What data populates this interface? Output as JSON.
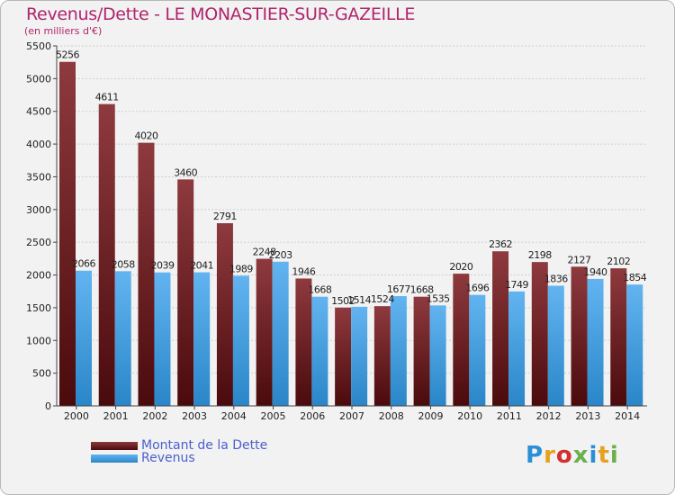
{
  "header": {
    "title": "Revenus/Dette - LE MONASTIER-SUR-GAZEILLE",
    "subtitle": "(en milliers d'€)"
  },
  "legend": {
    "debt_label": "Montant de la Dette",
    "revenue_label": "Revenus"
  },
  "logo": {
    "letters": [
      "P",
      "r",
      "o",
      "x",
      "i",
      "t",
      "i"
    ],
    "colors": [
      "#2b8fd6",
      "#e8a020",
      "#d03030",
      "#6ab04c",
      "#2b8fd6",
      "#e8a020",
      "#6ab04c"
    ]
  },
  "colors": {
    "debt_top": "#8e3a3e",
    "debt_bottom": "#4a0a0c",
    "revenue_top": "#62b4f0",
    "revenue_bottom": "#2a86c8"
  },
  "chart_data": {
    "type": "bar",
    "title": "Revenus/Dette - LE MONASTIER-SUR-GAZEILLE",
    "ylabel": "(en milliers d'€)",
    "xlabel": "",
    "categories": [
      "2000",
      "2001",
      "2002",
      "2003",
      "2004",
      "2005",
      "2006",
      "2007",
      "2008",
      "2009",
      "2010",
      "2011",
      "2012",
      "2013",
      "2014"
    ],
    "series": [
      {
        "name": "Montant de la Dette",
        "values": [
          5256,
          4611,
          4020,
          3460,
          2791,
          2248,
          1946,
          1502,
          1524,
          1668,
          2020,
          2362,
          2198,
          2127,
          2102
        ]
      },
      {
        "name": "Revenus",
        "values": [
          2066,
          2058,
          2039,
          2041,
          1989,
          2203,
          1668,
          1514,
          1677,
          1535,
          1696,
          1749,
          1836,
          1940,
          1854
        ]
      }
    ],
    "ylim": [
      0,
      5500
    ],
    "yticks": [
      0,
      500,
      1000,
      1500,
      2000,
      2500,
      3000,
      3500,
      4000,
      4500,
      5000,
      5500
    ],
    "grid": true,
    "legend_position": "bottom-left"
  }
}
